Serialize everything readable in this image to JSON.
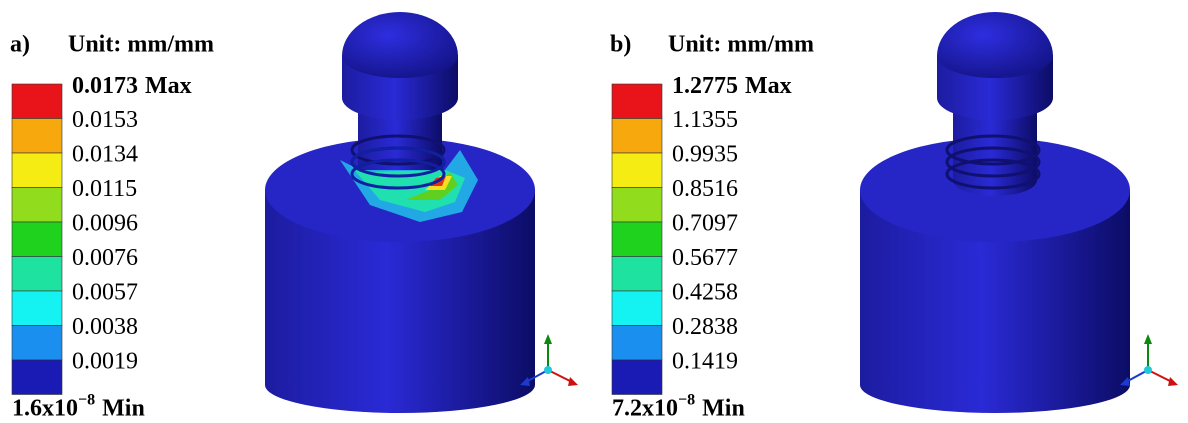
{
  "panels": [
    {
      "label": "a)",
      "unit": "Unit: mm/mm",
      "max": {
        "value": "0.0173",
        "label": "Max"
      },
      "levels": [
        "0.0153",
        "0.0134",
        "0.0115",
        "0.0096",
        "0.0076",
        "0.0057",
        "0.0038",
        "0.0019"
      ],
      "min": {
        "mantissa": "1.6x10",
        "exponent": "−8",
        "label": "Min"
      },
      "colors": [
        "#e8141a",
        "#f7a80c",
        "#f4ec12",
        "#92dc1e",
        "#1ed21e",
        "#1ee2a0",
        "#14f2f2",
        "#1a8ff0",
        "#1a1ab4"
      ]
    },
    {
      "label": "b)",
      "unit": "Unit: mm/mm",
      "max": {
        "value": "1.2775",
        "label": "Max"
      },
      "levels": [
        "1.1355",
        "0.9935",
        "0.8516",
        "0.7097",
        "0.5677",
        "0.4258",
        "0.2838",
        "0.1419"
      ],
      "min": {
        "mantissa": "7.2x10",
        "exponent": "−8",
        "label": "Min"
      },
      "colors": [
        "#e8141a",
        "#f7a80c",
        "#f4ec12",
        "#92dc1e",
        "#1ed21e",
        "#1ee2a0",
        "#14f2f2",
        "#1a8ff0",
        "#1a1ab4"
      ]
    }
  ]
}
